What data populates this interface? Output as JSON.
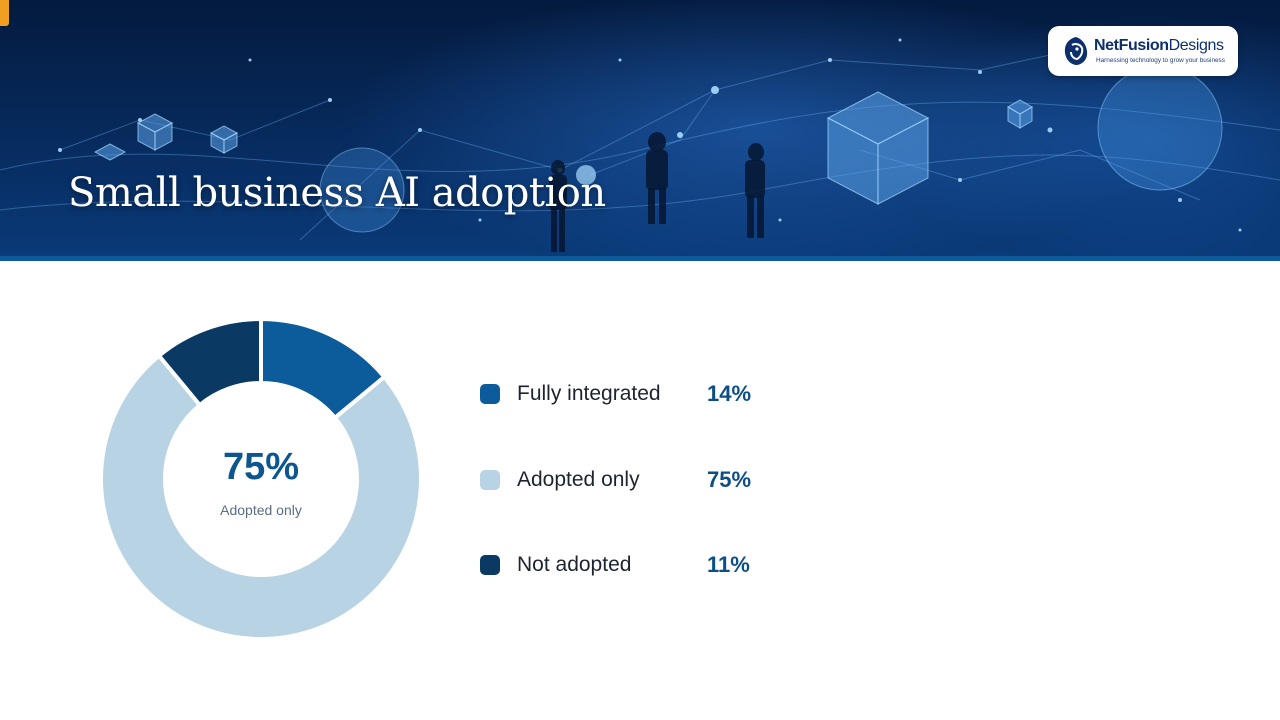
{
  "slide": {
    "title": "Small business AI adoption"
  },
  "logo": {
    "name_part1": "NetFusion",
    "name_part2": "Designs",
    "tagline": "Harnessing technology to grow your business",
    "icon": "lion-head-icon"
  },
  "colors": {
    "fully_integrated": "#0c5b9a",
    "adopted_only": "#b8d3e4",
    "not_adopted": "#0a3a64",
    "accent": "#f0a020",
    "value_text": "#0c4f86"
  },
  "chart_data": {
    "type": "pie",
    "donut": true,
    "categories": [
      "Fully integrated",
      "Adopted only",
      "Not adopted"
    ],
    "values": [
      14,
      75,
      11
    ],
    "value_labels": [
      "14%",
      "75%",
      "11%"
    ],
    "center_value": "75%",
    "center_label": "Adopted only",
    "legend_position": "right"
  }
}
